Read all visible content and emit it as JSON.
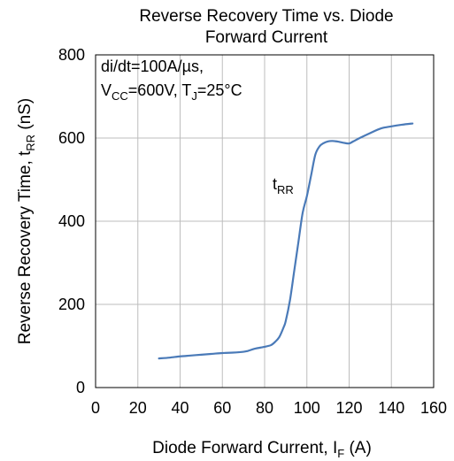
{
  "chart_data": {
    "type": "line",
    "title_line1": "Reverse Recovery Time vs. Diode",
    "title_line2": "Forward Current",
    "xlabel": {
      "main": "Diode Forward Current, I",
      "sub": "F",
      "tail": " (A)"
    },
    "ylabel": {
      "main": "Reverse Recovery Time, t",
      "sub": "RR",
      "tail": " (nS)"
    },
    "xlim": [
      0,
      160
    ],
    "ylim": [
      0,
      800
    ],
    "x_ticks": [
      0,
      20,
      40,
      60,
      80,
      100,
      120,
      140,
      160
    ],
    "y_ticks": [
      0,
      200,
      400,
      600,
      800
    ],
    "x_tick_labels": [
      "0",
      "20",
      "40",
      "60",
      "80",
      "100",
      "120",
      "140",
      "160"
    ],
    "y_tick_labels": [
      "0",
      "200",
      "400",
      "600",
      "800"
    ],
    "grid": true,
    "annotations": {
      "line1": "di/dt=100A/µs,",
      "line2_vcc_main": "V",
      "line2_vcc_sub": "CC",
      "line2_vcc_tail": "=600V,  T",
      "line2_tj_sub": "J",
      "line2_tj_tail": "=25°C"
    },
    "series_label": {
      "main": "t",
      "sub": "RR"
    },
    "series": [
      {
        "color": "#4a7ab8",
        "x": [
          30,
          35,
          40,
          45,
          50,
          55,
          60,
          65,
          70,
          72,
          75,
          78,
          80,
          83,
          85,
          87,
          89,
          90,
          92,
          94,
          96,
          98,
          100,
          102,
          104,
          106,
          108,
          110,
          112,
          114,
          116,
          118,
          120,
          122,
          125,
          130,
          135,
          140,
          145,
          150
        ],
        "y": [
          70,
          72,
          75,
          77,
          79,
          81,
          83,
          84,
          86,
          88,
          93,
          96,
          98,
          102,
          110,
          122,
          145,
          160,
          210,
          280,
          350,
          420,
          460,
          510,
          560,
          580,
          588,
          592,
          593,
          592,
          590,
          588,
          587,
          592,
          600,
          612,
          623,
          628,
          632,
          635
        ]
      }
    ]
  }
}
